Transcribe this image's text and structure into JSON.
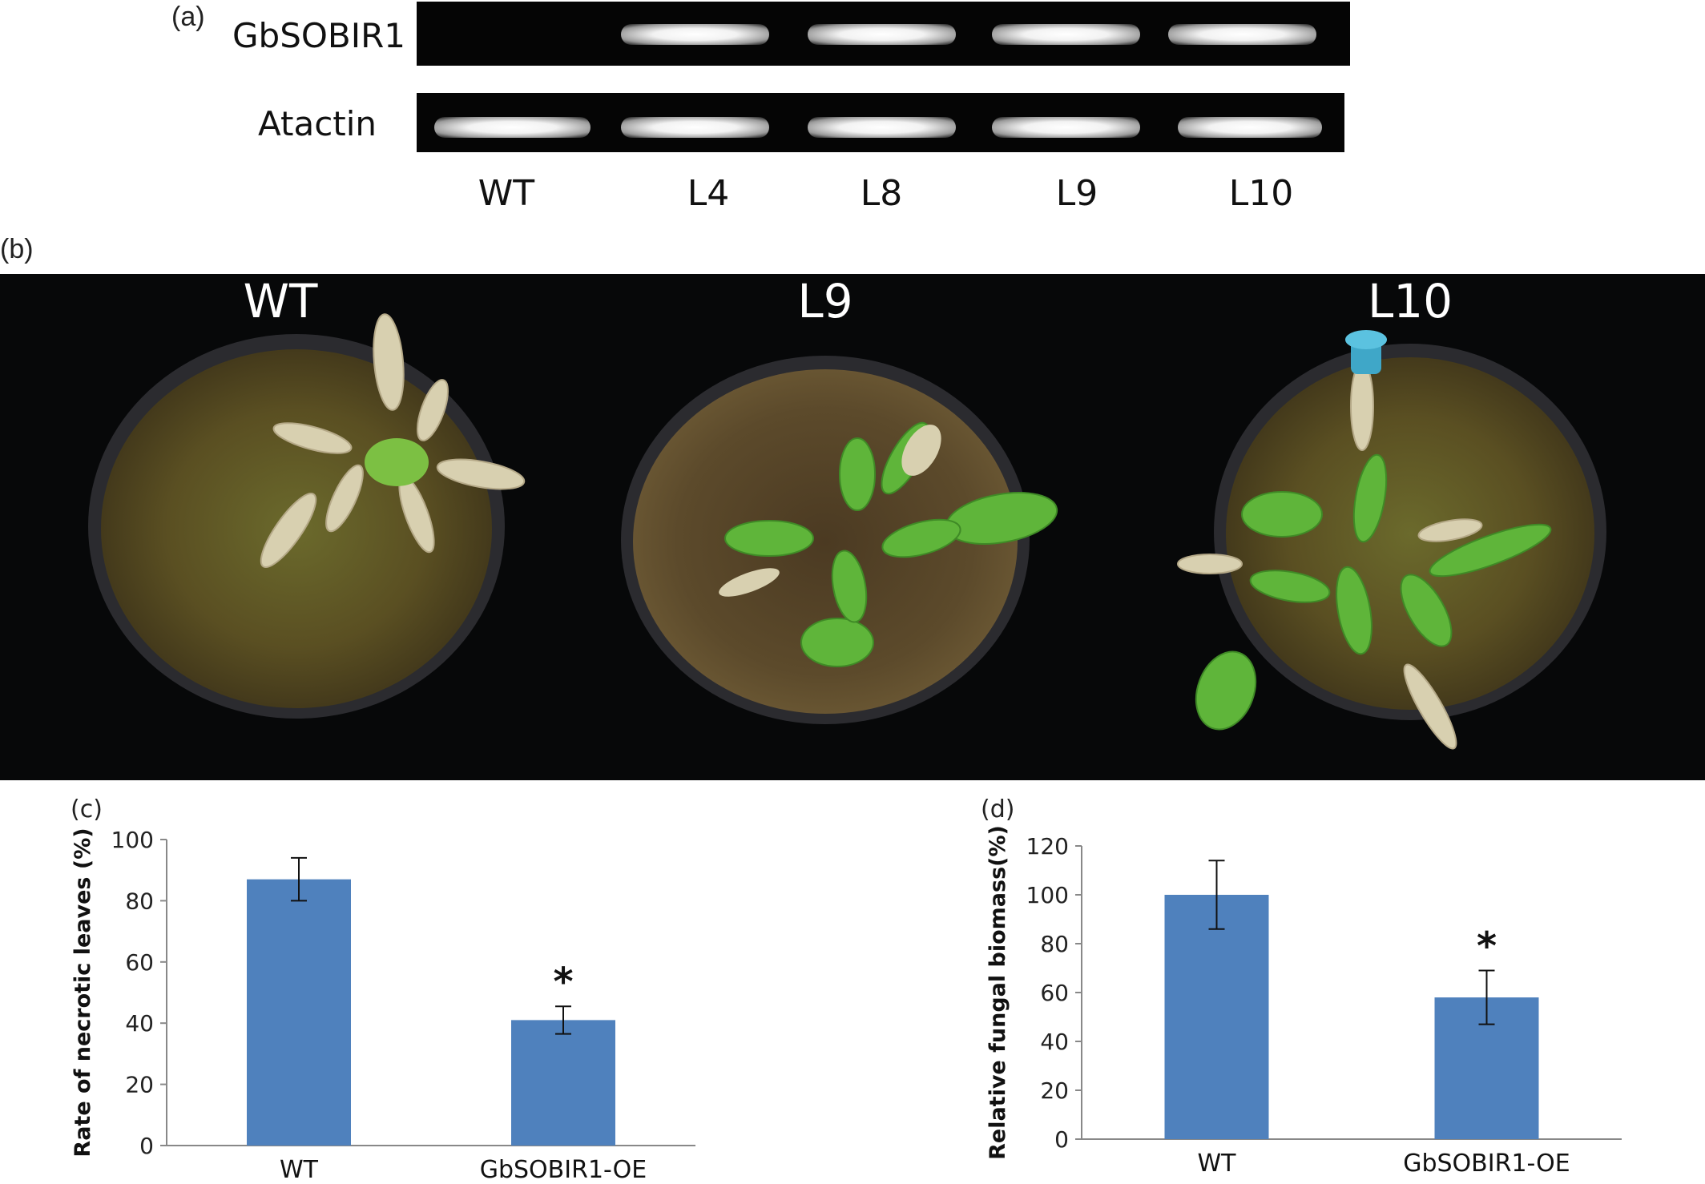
{
  "panel_a": {
    "letter": "(a)",
    "rows": [
      "GbSOBIR1",
      "Atactin"
    ],
    "lanes": [
      "WT",
      "L4",
      "L8",
      "L9",
      "L10"
    ]
  },
  "panel_b": {
    "letter": "(b)",
    "plants": [
      "WT",
      "L9",
      "L10"
    ]
  },
  "colors": {
    "bar": "#4f81bd",
    "gel": "#050505",
    "photo_bg": "#070809"
  },
  "chart_data": [
    {
      "type": "bar",
      "panel": "(c)",
      "categories": [
        "WT",
        "GbSOBIR1-OE"
      ],
      "values": [
        87,
        41
      ],
      "errors": [
        7,
        4.5
      ],
      "significance": [
        "",
        "*"
      ],
      "ylabel": "Rate of necrotic leaves (%)",
      "ylim": [
        0,
        100
      ],
      "yticks": [
        0,
        20,
        40,
        60,
        80,
        100
      ],
      "grid": false
    },
    {
      "type": "bar",
      "panel": "(d)",
      "categories": [
        "WT",
        "GbSOBIR1-OE"
      ],
      "values": [
        100,
        58
      ],
      "errors": [
        14,
        11
      ],
      "significance": [
        "",
        "*"
      ],
      "ylabel": "Relative fungal biomass(%)",
      "ylim": [
        0,
        120
      ],
      "yticks": [
        0,
        20,
        40,
        60,
        80,
        100,
        120
      ],
      "grid": false
    }
  ]
}
